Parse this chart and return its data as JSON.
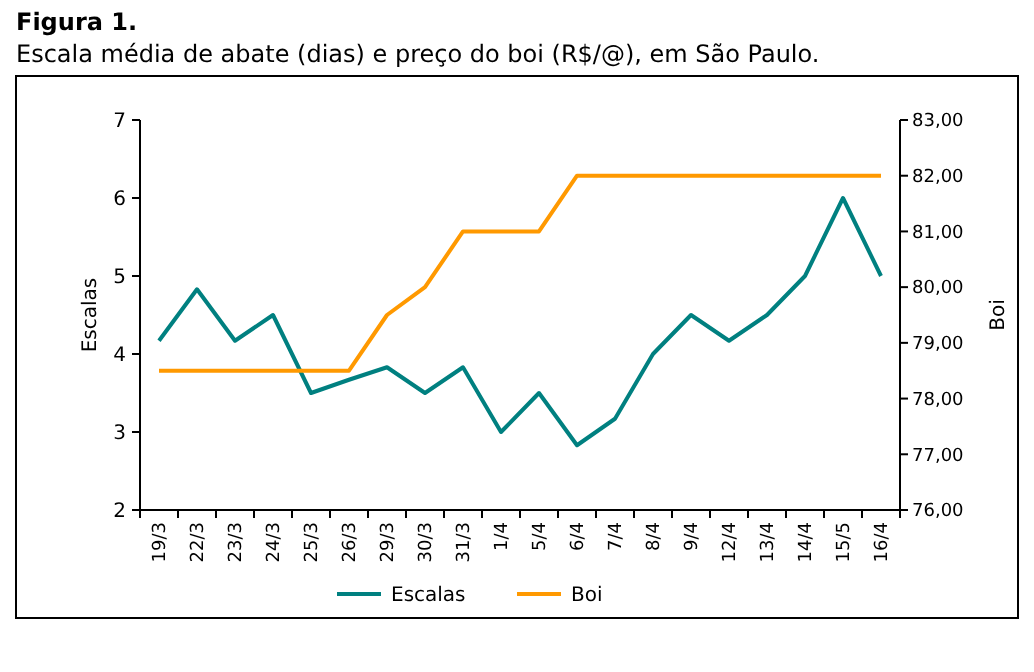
{
  "chart_data": {
    "type": "line",
    "title": "Figura 1.",
    "subtitle": "Escala média de abate (dias) e preço do boi (R$/@), em São Paulo.",
    "ylabel": "Escalas",
    "y2label": "Boi",
    "categories": [
      "19/3",
      "22/3",
      "23/3",
      "24/3",
      "25/3",
      "26/3",
      "29/3",
      "30/3",
      "31/3",
      "1/4",
      "5/4",
      "6/4",
      "7/4",
      "8/4",
      "9/4",
      "12/4",
      "13/4",
      "14/4",
      "15/5",
      "16/4"
    ],
    "series": [
      {
        "name": "Escalas",
        "color": "#008080",
        "values": [
          4.17,
          4.83,
          4.17,
          4.5,
          3.5,
          3.67,
          3.83,
          3.5,
          3.83,
          3.0,
          3.5,
          2.83,
          3.17,
          4.0,
          4.5,
          4.17,
          4.5,
          5.0,
          6.0,
          5.0
        ]
      },
      {
        "name": "Boi",
        "color": "#ff9900",
        "axis": "y2",
        "values": [
          78.5,
          78.5,
          78.5,
          78.5,
          78.5,
          78.5,
          79.5,
          80,
          81,
          81,
          81,
          82,
          82,
          82,
          82,
          82,
          82,
          82,
          82,
          82
        ]
      }
    ],
    "ylim": [
      2,
      7
    ],
    "yticks": [
      2,
      3,
      4,
      5,
      6,
      7
    ],
    "y2lim": [
      76,
      83
    ],
    "y2ticks": [
      {
        "value": 76,
        "label": "76,00"
      },
      {
        "value": 77,
        "label": "77,00"
      },
      {
        "value": 78,
        "label": "78,00"
      },
      {
        "value": 79,
        "label": "79,00"
      },
      {
        "value": 80,
        "label": "80,00"
      },
      {
        "value": 81,
        "label": "81,00"
      },
      {
        "value": 82,
        "label": "82,00"
      },
      {
        "value": 83,
        "label": "83,00"
      }
    ],
    "legend": "bottom",
    "grid": false,
    "line_style": "solid"
  }
}
